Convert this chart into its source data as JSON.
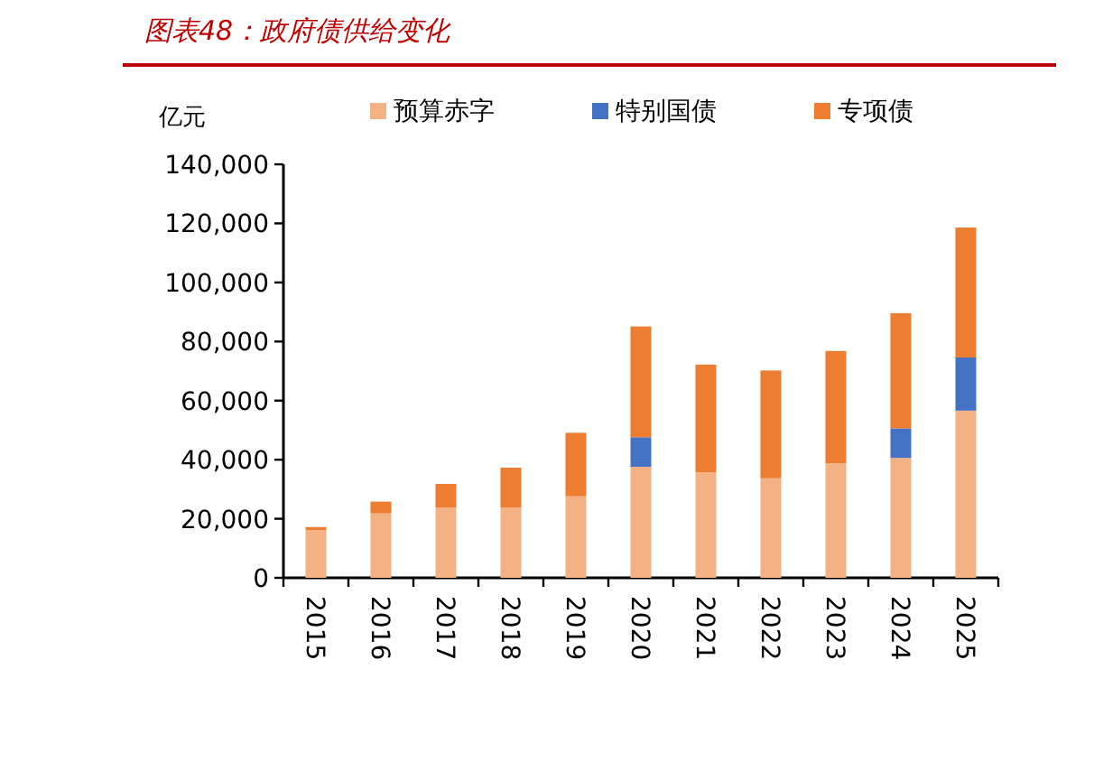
{
  "chart_data": {
    "type": "bar",
    "title": "图表48：政府债供给变化",
    "ylabel": "亿元",
    "stacked": true,
    "categories": [
      "2015",
      "2016",
      "2017",
      "2018",
      "2019",
      "2020",
      "2021",
      "2022",
      "2023",
      "2024",
      "2025"
    ],
    "series": [
      {
        "name": "预算赤字",
        "color": "#f4b183",
        "values": [
          16200,
          21800,
          23800,
          23800,
          27600,
          37600,
          35700,
          33700,
          38800,
          40600,
          56600
        ]
      },
      {
        "name": "特别国债",
        "color": "#4472c4",
        "values": [
          0,
          0,
          0,
          0,
          0,
          10000,
          0,
          0,
          0,
          10000,
          18000
        ]
      },
      {
        "name": "专项债",
        "color": "#ed7d31",
        "values": [
          1000,
          4000,
          8000,
          13500,
          21500,
          37500,
          36500,
          36500,
          38000,
          39000,
          44000
        ]
      }
    ],
    "ylim": [
      0,
      140000
    ],
    "yticks": [
      {
        "value": 0,
        "label": "0"
      },
      {
        "value": 20000,
        "label": "20,000"
      },
      {
        "value": 40000,
        "label": "40,000"
      },
      {
        "value": 60000,
        "label": "60,000"
      },
      {
        "value": 80000,
        "label": "80,000"
      },
      {
        "value": 100000,
        "label": "100,000"
      },
      {
        "value": 120000,
        "label": "120,000"
      },
      {
        "value": 140000,
        "label": "140,000"
      }
    ],
    "legend": "top",
    "grid": false
  }
}
